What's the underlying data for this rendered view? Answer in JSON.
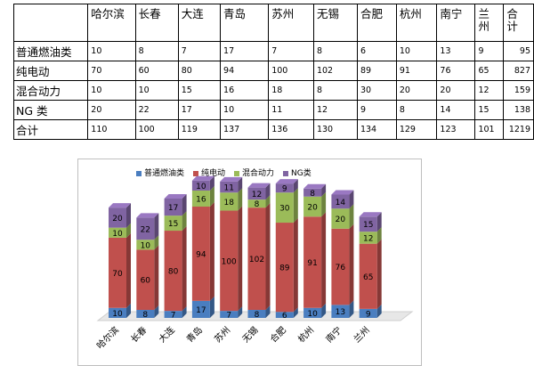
{
  "table": {
    "header": [
      "",
      "哈尔滨",
      "长春",
      "大连",
      "青岛",
      "苏州",
      "无锡",
      "合肥",
      "杭州",
      "南宁",
      "兰州",
      "合计"
    ],
    "header_display": [
      "",
      "哈尔滨",
      "长春",
      "大连",
      "青岛",
      "苏州",
      "无锡",
      "合肥",
      "杭州",
      "南宁",
      "兰\n州",
      "合\n计"
    ],
    "rows": [
      {
        "label": "普通燃油类",
        "values": [
          "10",
          "8",
          "7",
          "17",
          "7",
          "8",
          "6",
          "10",
          "13",
          "9"
        ],
        "total": "95"
      },
      {
        "label": "纯电动",
        "values": [
          "70",
          "60",
          "80",
          "94",
          "100",
          "102",
          "89",
          "91",
          "76",
          "65"
        ],
        "total": "827"
      },
      {
        "label": "混合动力",
        "values": [
          "10",
          "10",
          "15",
          "16",
          "18",
          "8",
          "30",
          "20",
          "20",
          "12"
        ],
        "total": "159"
      },
      {
        "label": "NG 类",
        "values": [
          "20",
          "22",
          "17",
          "10",
          "11",
          "12",
          "9",
          "8",
          "14",
          "15"
        ],
        "total": "138"
      },
      {
        "label": "合计",
        "values": [
          "110",
          "100",
          "119",
          "137",
          "136",
          "130",
          "134",
          "129",
          "123",
          "101"
        ],
        "total": "1219"
      }
    ]
  },
  "chart_data": {
    "type": "bar",
    "stacked": true,
    "three_d": true,
    "categories": [
      "哈尔滨",
      "长春",
      "大连",
      "青岛",
      "苏州",
      "无锡",
      "合肥",
      "杭州",
      "南宁",
      "兰州"
    ],
    "series": [
      {
        "name": "普通燃油类",
        "color": "#4a7ec0",
        "values": [
          10,
          8,
          7,
          17,
          7,
          8,
          6,
          10,
          13,
          9
        ]
      },
      {
        "name": "纯电动",
        "color": "#c0504d",
        "values": [
          70,
          60,
          80,
          94,
          100,
          102,
          89,
          91,
          76,
          65
        ]
      },
      {
        "name": "混合动力",
        "color": "#9bbb59",
        "values": [
          10,
          10,
          15,
          16,
          18,
          8,
          30,
          20,
          20,
          12
        ]
      },
      {
        "name": "NG类",
        "color": "#8064a2",
        "values": [
          20,
          22,
          17,
          10,
          11,
          12,
          9,
          8,
          14,
          15
        ]
      }
    ],
    "legend_position": "top",
    "grid": false
  }
}
